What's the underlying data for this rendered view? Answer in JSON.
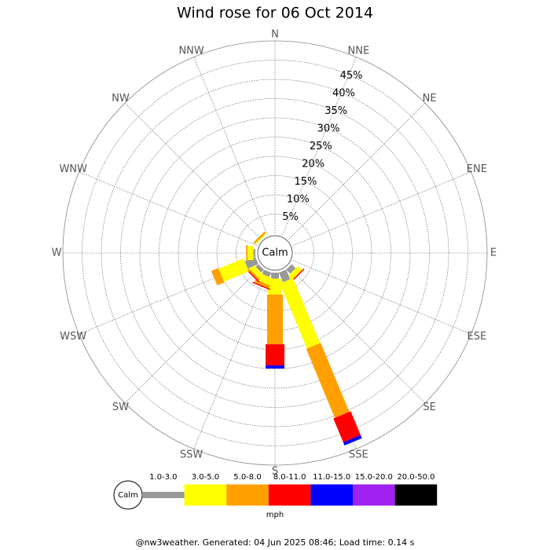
{
  "chart_data": {
    "type": "windrose",
    "title": "Wind rose for 06 Oct 2014",
    "directions": [
      "N",
      "NNE",
      "NE",
      "ENE",
      "E",
      "ESE",
      "SE",
      "SSE",
      "S",
      "SSW",
      "SW",
      "WSW",
      "W",
      "WNW",
      "NW",
      "NNW"
    ],
    "rlim": [
      0,
      50
    ],
    "rticks": [
      {
        "value": 5,
        "label": "5%"
      },
      {
        "value": 10,
        "label": "10%"
      },
      {
        "value": 15,
        "label": "15%"
      },
      {
        "value": 20,
        "label": "20%"
      },
      {
        "value": 25,
        "label": "25%"
      },
      {
        "value": 30,
        "label": "30%"
      },
      {
        "value": 35,
        "label": "35%"
      },
      {
        "value": 40,
        "label": "40%"
      },
      {
        "value": 45,
        "label": "45%"
      }
    ],
    "calm_label": "Calm",
    "unit": "mph",
    "series": [
      {
        "name": "1.0-3.0",
        "color": "#999999",
        "values": [
          0,
          0,
          0,
          0,
          0,
          0,
          1.5,
          2.7,
          1.6,
          1.2,
          1.0,
          3,
          0.5,
          0,
          0,
          0
        ]
      },
      {
        "name": "3.0-5.0",
        "color": "#ffff00",
        "values": [
          0,
          0,
          0,
          0,
          0,
          0,
          1.5,
          18.3,
          4.1,
          2,
          1.5,
          7,
          1.5,
          0,
          0.3,
          0
        ]
      },
      {
        "name": "5.0-8.0",
        "color": "#ffa000",
        "values": [
          0,
          0,
          0,
          0,
          0,
          0,
          0,
          19.4,
          12.9,
          0.8,
          0.5,
          2,
          0.4,
          0,
          0.5,
          0
        ]
      },
      {
        "name": "8.0-11.0",
        "color": "#ff0000",
        "values": [
          0,
          0,
          0,
          0,
          0,
          0,
          0.3,
          6.7,
          5.5,
          0.3,
          0.3,
          0,
          0,
          0,
          0,
          0
        ]
      },
      {
        "name": "11.0-15.0",
        "color": "#0000ff",
        "values": [
          0,
          0,
          0,
          0,
          0,
          0,
          0,
          0.9,
          0.8,
          0,
          0,
          0,
          0,
          0,
          0,
          0
        ]
      },
      {
        "name": "15.0-20.0",
        "color": "#a020f0",
        "values": [
          0,
          0,
          0,
          0,
          0,
          0,
          0,
          0,
          0,
          0,
          0,
          0,
          0,
          0,
          0,
          0
        ]
      },
      {
        "name": "20.0-50.0",
        "color": "#000000",
        "values": [
          0,
          0,
          0,
          0,
          0,
          0,
          0,
          0,
          0,
          0,
          0,
          0,
          0,
          0,
          0,
          0
        ]
      }
    ],
    "footer": "@nw3weather. Generated: 04 Jun 2025 08:46; Load time: 0.14 s"
  }
}
